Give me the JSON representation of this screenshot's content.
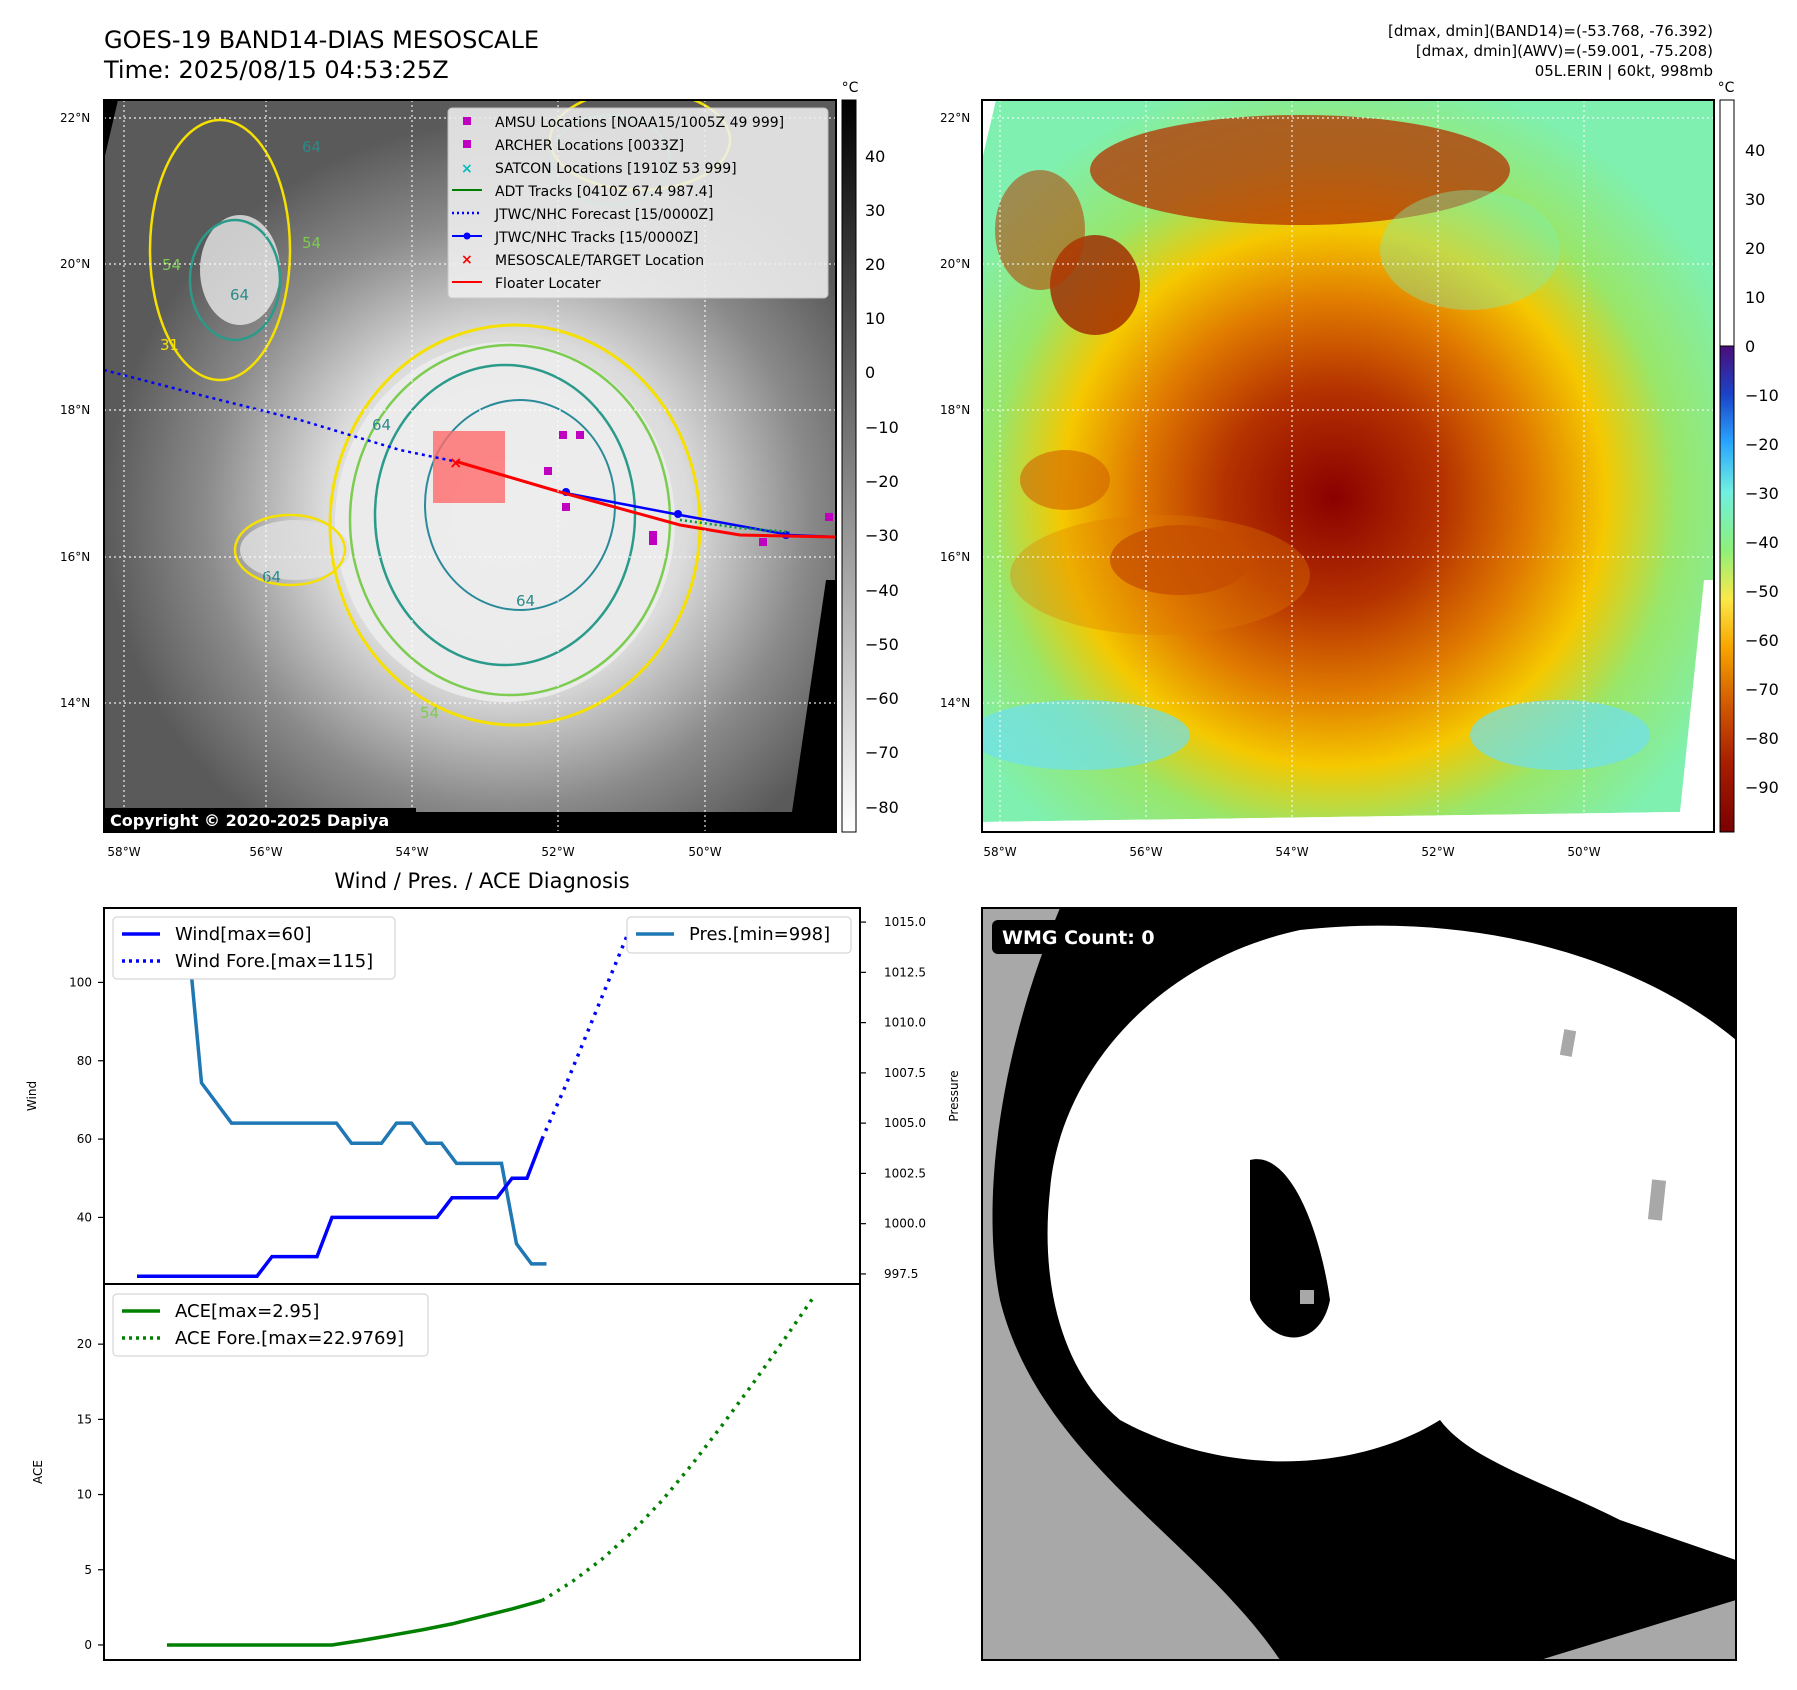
{
  "header": {
    "title": "GOES-19 BAND14-DIAS MESOSCALE",
    "time": "Time: 2025/08/15 04:53:25Z",
    "dmax_band14": "[dmax, dmin](BAND14)=(-53.768, -76.392)",
    "dmax_awv": "[dmax, dmin](AWV)=(-59.001, -75.208)",
    "storm": "05L.ERIN | 60kt, 998mb"
  },
  "maps": {
    "lat_labels": [
      "22°N",
      "20°N",
      "18°N",
      "16°N",
      "14°N"
    ],
    "lon_labels": [
      "58°W",
      "56°W",
      "54°W",
      "52°W",
      "50°W"
    ],
    "copyright": "Copyright © 2020-2025 Dapiya",
    "contour_labels": [
      "64",
      "64",
      "64",
      "64",
      "64",
      "54",
      "54",
      "31",
      "54"
    ]
  },
  "legend_map": [
    {
      "label": "AMSU Locations [NOAA15/1005Z 49 999]",
      "marker": "square",
      "color": "#c000c0"
    },
    {
      "label": "ARCHER Locations [0033Z]",
      "marker": "square",
      "color": "#c000c0"
    },
    {
      "label": "SATCON Locations [1910Z 53 999]",
      "marker": "x",
      "color": "#00bfbf"
    },
    {
      "label": "ADT Tracks [0410Z 67.4 987.4]",
      "marker": "line",
      "color": "#008000"
    },
    {
      "label": "JTWC/NHC Forecast [15/0000Z]",
      "marker": "dotted",
      "color": "#0000ff"
    },
    {
      "label": "JTWC/NHC Tracks [15/0000Z]",
      "marker": "line-dot",
      "color": "#0000ff"
    },
    {
      "label": "MESOSCALE/TARGET Location",
      "marker": "x",
      "color": "#ff0000"
    },
    {
      "label": "Floater Locater",
      "marker": "line",
      "color": "#ff0000"
    }
  ],
  "colorbar1": {
    "unit": "°C",
    "ticks": [
      "40",
      "30",
      "20",
      "10",
      "0",
      "−10",
      "−20",
      "−30",
      "−40",
      "−50",
      "−60",
      "−70",
      "−80"
    ]
  },
  "colorbar2": {
    "unit": "°C",
    "ticks": [
      "40",
      "30",
      "20",
      "10",
      "0",
      "−10",
      "−20",
      "−30",
      "−40",
      "−50",
      "−60",
      "−70",
      "−80",
      "−90"
    ]
  },
  "diag_title": "Wind / Pres. / ACE Diagnosis",
  "wmg_label": "WMG Count: 0",
  "chart_data": [
    {
      "type": "line",
      "title": "Wind / Pres. / ACE Diagnosis",
      "ylabel": "Wind",
      "y2label": "Pressure",
      "ylim": [
        23,
        119
      ],
      "y_ticks": [
        40,
        60,
        80,
        100
      ],
      "y2lim": [
        997.0,
        1015.7
      ],
      "y2_ticks": [
        "997.5",
        "1000.0",
        "1002.5",
        "1005.0",
        "1007.5",
        "1010.0",
        "1012.5",
        "1015.0"
      ],
      "x_index": [
        0,
        1,
        2,
        3,
        4,
        5,
        6,
        7,
        8,
        9,
        10,
        11,
        12,
        13,
        14,
        15,
        16,
        17,
        18,
        19,
        20,
        21,
        22,
        23,
        24,
        25,
        26,
        27,
        28,
        29,
        30
      ],
      "series": [
        {
          "name": "Wind[max=60]",
          "style": "solid",
          "color": "#0000ff",
          "values": [
            25,
            25,
            25,
            25,
            25,
            25,
            25,
            25,
            25,
            30,
            30,
            30,
            30,
            40,
            40,
            40,
            40,
            40,
            40,
            40,
            40,
            45,
            45,
            45,
            45,
            50,
            50,
            60
          ]
        },
        {
          "name": "Wind Fore.[max=115]",
          "style": "dotted",
          "color": "#0000ff",
          "x": [
            27,
            28.5,
            30,
            31.5,
            33,
            35,
            37,
            39,
            41,
            43,
            45
          ],
          "values": [
            60,
            73,
            87,
            101,
            115,
            115,
            115,
            115,
            115,
            115,
            113
          ]
        },
        {
          "name": "Pres.[min=998]",
          "style": "solid",
          "color": "#1f77b4",
          "axis": "y2",
          "x": [
            2.3,
            3.3,
            4.3,
            5.3,
            6.3,
            7.3,
            8.3,
            9.3,
            10.3,
            11.3,
            12.3,
            13.3,
            14.3,
            15.3,
            16.3,
            17.3,
            18.3,
            19.3,
            20.3,
            21.3,
            22.3,
            23.3,
            24.3,
            25.3,
            26.3,
            27.3
          ],
          "values": [
            1015,
            1015,
            1007,
            1006,
            1005,
            1005,
            1005,
            1005,
            1005,
            1005,
            1005,
            1005,
            1004,
            1004,
            1004,
            1005,
            1005,
            1004,
            1004,
            1003,
            1003,
            1003,
            1003,
            999,
            998,
            998
          ]
        }
      ]
    },
    {
      "type": "line",
      "ylabel": "ACE",
      "ylim": [
        -1,
        24
      ],
      "y_ticks": [
        0,
        5,
        10,
        15,
        20
      ],
      "series": [
        {
          "name": "ACE[max=2.95]",
          "style": "solid",
          "color": "#008000",
          "x": [
            2,
            4,
            6,
            8,
            10,
            12,
            13,
            15,
            17,
            19,
            21,
            23,
            25,
            27
          ],
          "values": [
            0,
            0,
            0,
            0,
            0,
            0,
            0,
            0.3,
            0.65,
            1.0,
            1.4,
            1.9,
            2.4,
            2.95
          ]
        },
        {
          "name": "ACE Fore.[max=22.9769]",
          "style": "dotted",
          "color": "#008000",
          "x": [
            27,
            29,
            31,
            33,
            35,
            37,
            39,
            41,
            43,
            45
          ],
          "values": [
            2.95,
            4.2,
            5.7,
            7.5,
            9.6,
            12.0,
            14.6,
            17.3,
            20.1,
            22.98
          ]
        }
      ]
    }
  ]
}
